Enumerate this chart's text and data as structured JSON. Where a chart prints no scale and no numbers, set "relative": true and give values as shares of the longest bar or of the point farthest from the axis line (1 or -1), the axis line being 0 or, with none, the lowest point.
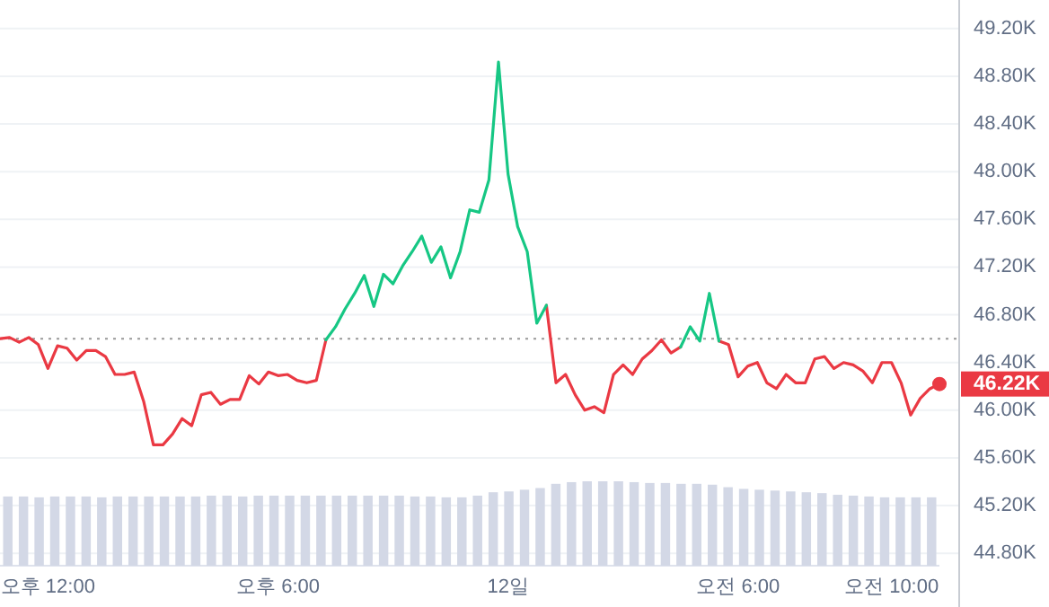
{
  "chart_data": [
    {
      "type": "line",
      "ylim": [
        44.35,
        49.44
      ],
      "categories": [
        null,
        null,
        null,
        null,
        null,
        "오후 12:00",
        null,
        null,
        null,
        null,
        null,
        null,
        null,
        null,
        null,
        null,
        null,
        null,
        null,
        null,
        null,
        null,
        null,
        null,
        null,
        null,
        null,
        null,
        null,
        "오후 6:00",
        null,
        null,
        null,
        null,
        null,
        null,
        null,
        null,
        null,
        null,
        null,
        null,
        null,
        null,
        null,
        null,
        null,
        null,
        null,
        null,
        null,
        null,
        null,
        "12일",
        null,
        null,
        null,
        null,
        null,
        null,
        null,
        null,
        null,
        null,
        null,
        null,
        null,
        null,
        null,
        null,
        null,
        null,
        null,
        null,
        null,
        null,
        null,
        "오전 6:00",
        null,
        null,
        null,
        null,
        null,
        null,
        null,
        null,
        null,
        null,
        null,
        null,
        null,
        null,
        null,
        "오전 10:00",
        null,
        null,
        null,
        null,
        null
      ],
      "yticks": [
        {
          "value": 44.8,
          "label": "44.80K"
        },
        {
          "value": 45.2,
          "label": "45.20K"
        },
        {
          "value": 45.6,
          "label": "45.60K"
        },
        {
          "value": 46.0,
          "label": "46.00K"
        },
        {
          "value": 46.4,
          "label": "46.40K"
        },
        {
          "value": 46.8,
          "label": "46.80K"
        },
        {
          "value": 47.2,
          "label": "47.20K"
        },
        {
          "value": 47.6,
          "label": "47.60K"
        },
        {
          "value": 48.0,
          "label": "48.00K"
        },
        {
          "value": 48.4,
          "label": "48.40K"
        },
        {
          "value": 48.8,
          "label": "48.80K"
        },
        {
          "value": 49.2,
          "label": "49.20K"
        }
      ],
      "grid": "y",
      "series": [
        {
          "color": "#ea3943",
          "values": [
            46.6,
            46.61,
            46.57,
            46.61,
            46.55,
            46.35,
            46.54,
            46.52,
            46.42,
            46.5,
            46.5,
            46.45,
            46.3,
            46.3,
            46.32,
            46.07,
            45.71,
            45.71,
            45.8,
            45.93,
            45.87,
            46.13,
            46.15,
            46.05,
            46.09,
            46.09,
            46.29,
            46.22,
            46.32,
            46.29,
            46.3,
            46.25,
            46.23,
            46.25,
            46.59,
            null,
            null,
            null,
            null,
            null,
            null,
            null,
            null,
            null,
            null,
            null,
            null,
            null,
            null,
            null,
            null,
            null,
            null,
            null,
            null,
            null,
            null,
            46.88,
            46.23,
            46.3,
            46.13,
            46.0,
            46.03,
            45.98,
            46.3,
            46.38,
            46.3,
            46.43,
            46.5,
            46.59,
            46.48,
            46.53,
            null,
            null,
            null,
            46.58,
            46.55,
            46.28,
            46.37,
            46.4,
            46.23,
            46.18,
            46.3,
            46.23,
            46.23,
            46.43,
            46.45,
            46.35,
            46.4,
            46.38,
            46.33,
            46.23,
            46.4,
            46.4,
            46.23,
            45.96,
            46.1,
            46.18,
            46.22
          ]
        },
        {
          "color": "#16c784",
          "values": [
            null,
            null,
            null,
            null,
            null,
            null,
            null,
            null,
            null,
            null,
            null,
            null,
            null,
            null,
            null,
            null,
            null,
            null,
            null,
            null,
            null,
            null,
            null,
            null,
            null,
            null,
            null,
            null,
            null,
            null,
            null,
            null,
            null,
            null,
            46.59,
            46.7,
            46.85,
            46.98,
            47.13,
            46.87,
            47.14,
            47.06,
            47.21,
            47.33,
            47.46,
            47.24,
            47.37,
            47.11,
            47.33,
            47.68,
            47.66,
            47.93,
            48.92,
            47.98,
            47.54,
            47.33,
            46.73,
            46.88,
            null,
            null,
            null,
            null,
            null,
            null,
            null,
            null,
            null,
            null,
            null,
            null,
            null,
            46.53,
            46.7,
            46.58,
            46.98,
            46.58,
            null,
            null,
            null,
            null,
            null,
            null,
            null,
            null,
            null,
            null,
            null,
            null,
            null,
            null,
            null,
            null,
            null,
            null,
            null,
            null,
            null,
            null,
            null
          ]
        }
      ],
      "ref_lines": [
        {
          "axis": "y",
          "value": 46.6,
          "color": "#999999",
          "line_style": "dotted"
        }
      ],
      "annotations": [
        "46.22K"
      ]
    },
    {
      "type": "bar",
      "relative": true,
      "color": "#d3d8e6",
      "categories": [
        null,
        null,
        null,
        null,
        null,
        null,
        null,
        null,
        null,
        null,
        null,
        null,
        null,
        null,
        null,
        null,
        null,
        null,
        null,
        null,
        null,
        null,
        null,
        null,
        null,
        null,
        null,
        null,
        null,
        null,
        null,
        null,
        null,
        null,
        null,
        null,
        null,
        null,
        null,
        null,
        null,
        null,
        null,
        null,
        null,
        null,
        null,
        null,
        null,
        null,
        null,
        null,
        null,
        null,
        null,
        null,
        null,
        null,
        null,
        null
      ],
      "values": [
        0.82,
        0.82,
        0.81,
        0.82,
        0.82,
        0.82,
        0.81,
        0.82,
        0.82,
        0.82,
        0.82,
        0.82,
        0.82,
        0.83,
        0.83,
        0.82,
        0.83,
        0.83,
        0.83,
        0.83,
        0.83,
        0.83,
        0.83,
        0.83,
        0.83,
        0.83,
        0.82,
        0.82,
        0.81,
        0.81,
        0.83,
        0.87,
        0.88,
        0.9,
        0.92,
        0.97,
        0.99,
        1.0,
        1.0,
        1.0,
        0.99,
        0.98,
        0.98,
        0.97,
        0.97,
        0.96,
        0.93,
        0.91,
        0.9,
        0.89,
        0.88,
        0.87,
        0.86,
        0.84,
        0.83,
        0.82,
        0.81,
        0.81,
        0.81,
        0.81
      ]
    }
  ]
}
